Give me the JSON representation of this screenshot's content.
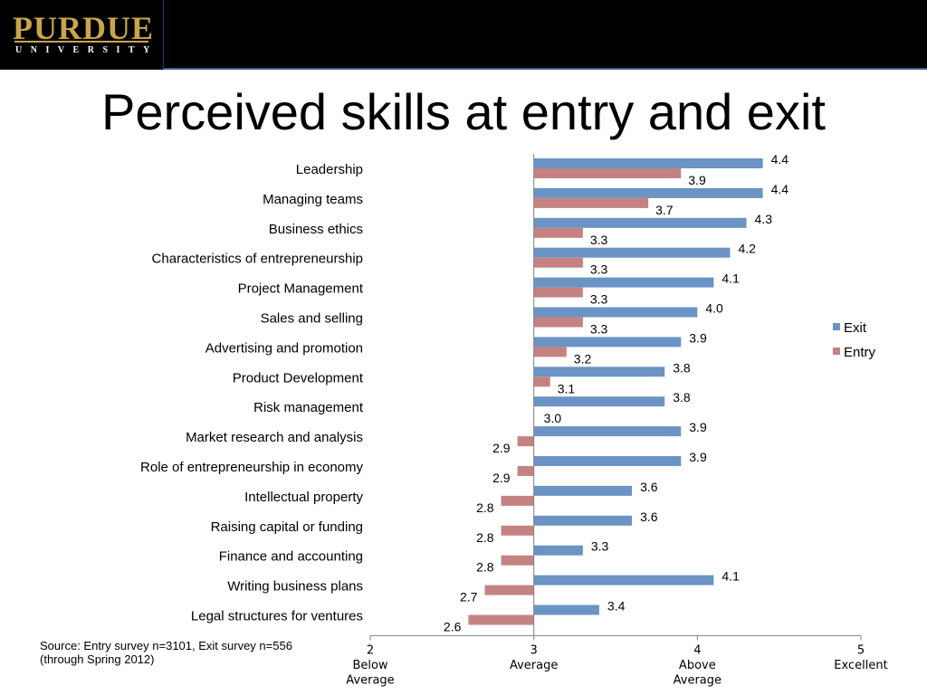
{
  "header": {
    "logo_word": "PURDUE",
    "logo_sub": "UNIVERSITY"
  },
  "title": "Perceived skills at entry and exit",
  "source_note": "Source: Entry survey n=3101, Exit survey n=556  (through Spring 2012)",
  "chart_data": {
    "type": "bar",
    "orientation": "horizontal",
    "categories": [
      "Leadership",
      "Managing teams",
      "Business ethics",
      "Characteristics of entrepreneurship",
      "Project Management",
      "Sales and selling",
      "Advertising and promotion",
      "Product Development",
      "Risk management",
      "Market research and analysis",
      "Role of entrepreneurship in economy",
      "Intellectual property",
      "Raising capital or funding",
      "Finance and accounting",
      "Writing business plans",
      "Legal structures for ventures"
    ],
    "series": [
      {
        "name": "Exit",
        "color": "#6b94c4",
        "values": [
          4.4,
          4.4,
          4.3,
          4.2,
          4.1,
          4.0,
          3.9,
          3.8,
          3.8,
          3.9,
          3.9,
          3.6,
          3.6,
          3.3,
          4.1,
          3.4
        ]
      },
      {
        "name": "Entry",
        "color": "#c48382",
        "values": [
          3.9,
          3.7,
          3.3,
          3.3,
          3.3,
          3.3,
          3.2,
          3.1,
          3.0,
          2.9,
          2.9,
          2.8,
          2.8,
          2.8,
          2.7,
          2.6
        ]
      }
    ],
    "value_labels": {
      "Exit": [
        "4.4",
        "4.4",
        "4.3",
        "4.2",
        "4.1",
        "4.0",
        "3.9",
        "3.8",
        "3.8",
        "3.9",
        "3.9",
        "3.6",
        "3.6",
        "3.3",
        "4.1",
        "3.4"
      ],
      "Entry": [
        "3.9",
        "3.7",
        "3.3",
        "3.3",
        "3.3",
        "3.3",
        "3.2",
        "3.1",
        "3.0",
        "2.9",
        "2.9",
        "2.8",
        "2.8",
        "2.8",
        "2.7",
        "2.6"
      ]
    },
    "baseline": 3,
    "xlim": [
      2,
      5
    ],
    "xticks": [
      {
        "value": 2,
        "lines": [
          "2",
          "Below",
          "Average"
        ]
      },
      {
        "value": 3,
        "lines": [
          "3",
          "Average"
        ]
      },
      {
        "value": 4,
        "lines": [
          "4",
          "Above",
          "Average"
        ]
      },
      {
        "value": 5,
        "lines": [
          "5",
          "Excellent"
        ]
      }
    ],
    "legend": "right",
    "grid": false
  }
}
